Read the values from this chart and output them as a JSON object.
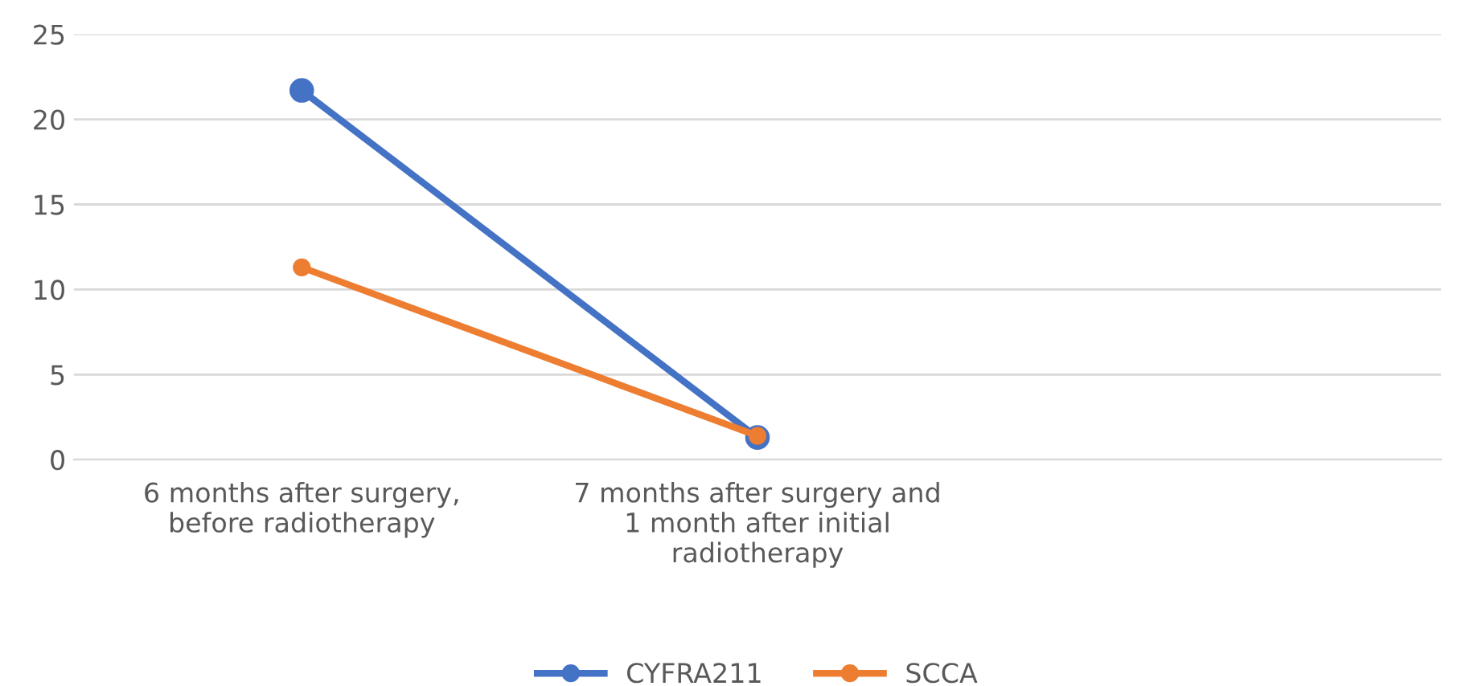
{
  "chart_data": {
    "type": "line",
    "categories": [
      "6 months after surgery,\nbefore radiotherapy",
      "7 months after surgery and\n1 month after initial\nradiotherapy",
      null
    ],
    "series": [
      {
        "name": "CYFRA211",
        "color": "#4472c4",
        "values": [
          21.7,
          1.3,
          null
        ]
      },
      {
        "name": "SCCA",
        "color": "#ed7d31",
        "values": [
          11.3,
          1.4,
          null
        ]
      }
    ],
    "ylim": [
      0,
      25
    ],
    "yticks": [
      0,
      5,
      10,
      15,
      20,
      25
    ],
    "grid": "y",
    "legend": "bottom",
    "marker": "circle",
    "line_style": "solid"
  }
}
